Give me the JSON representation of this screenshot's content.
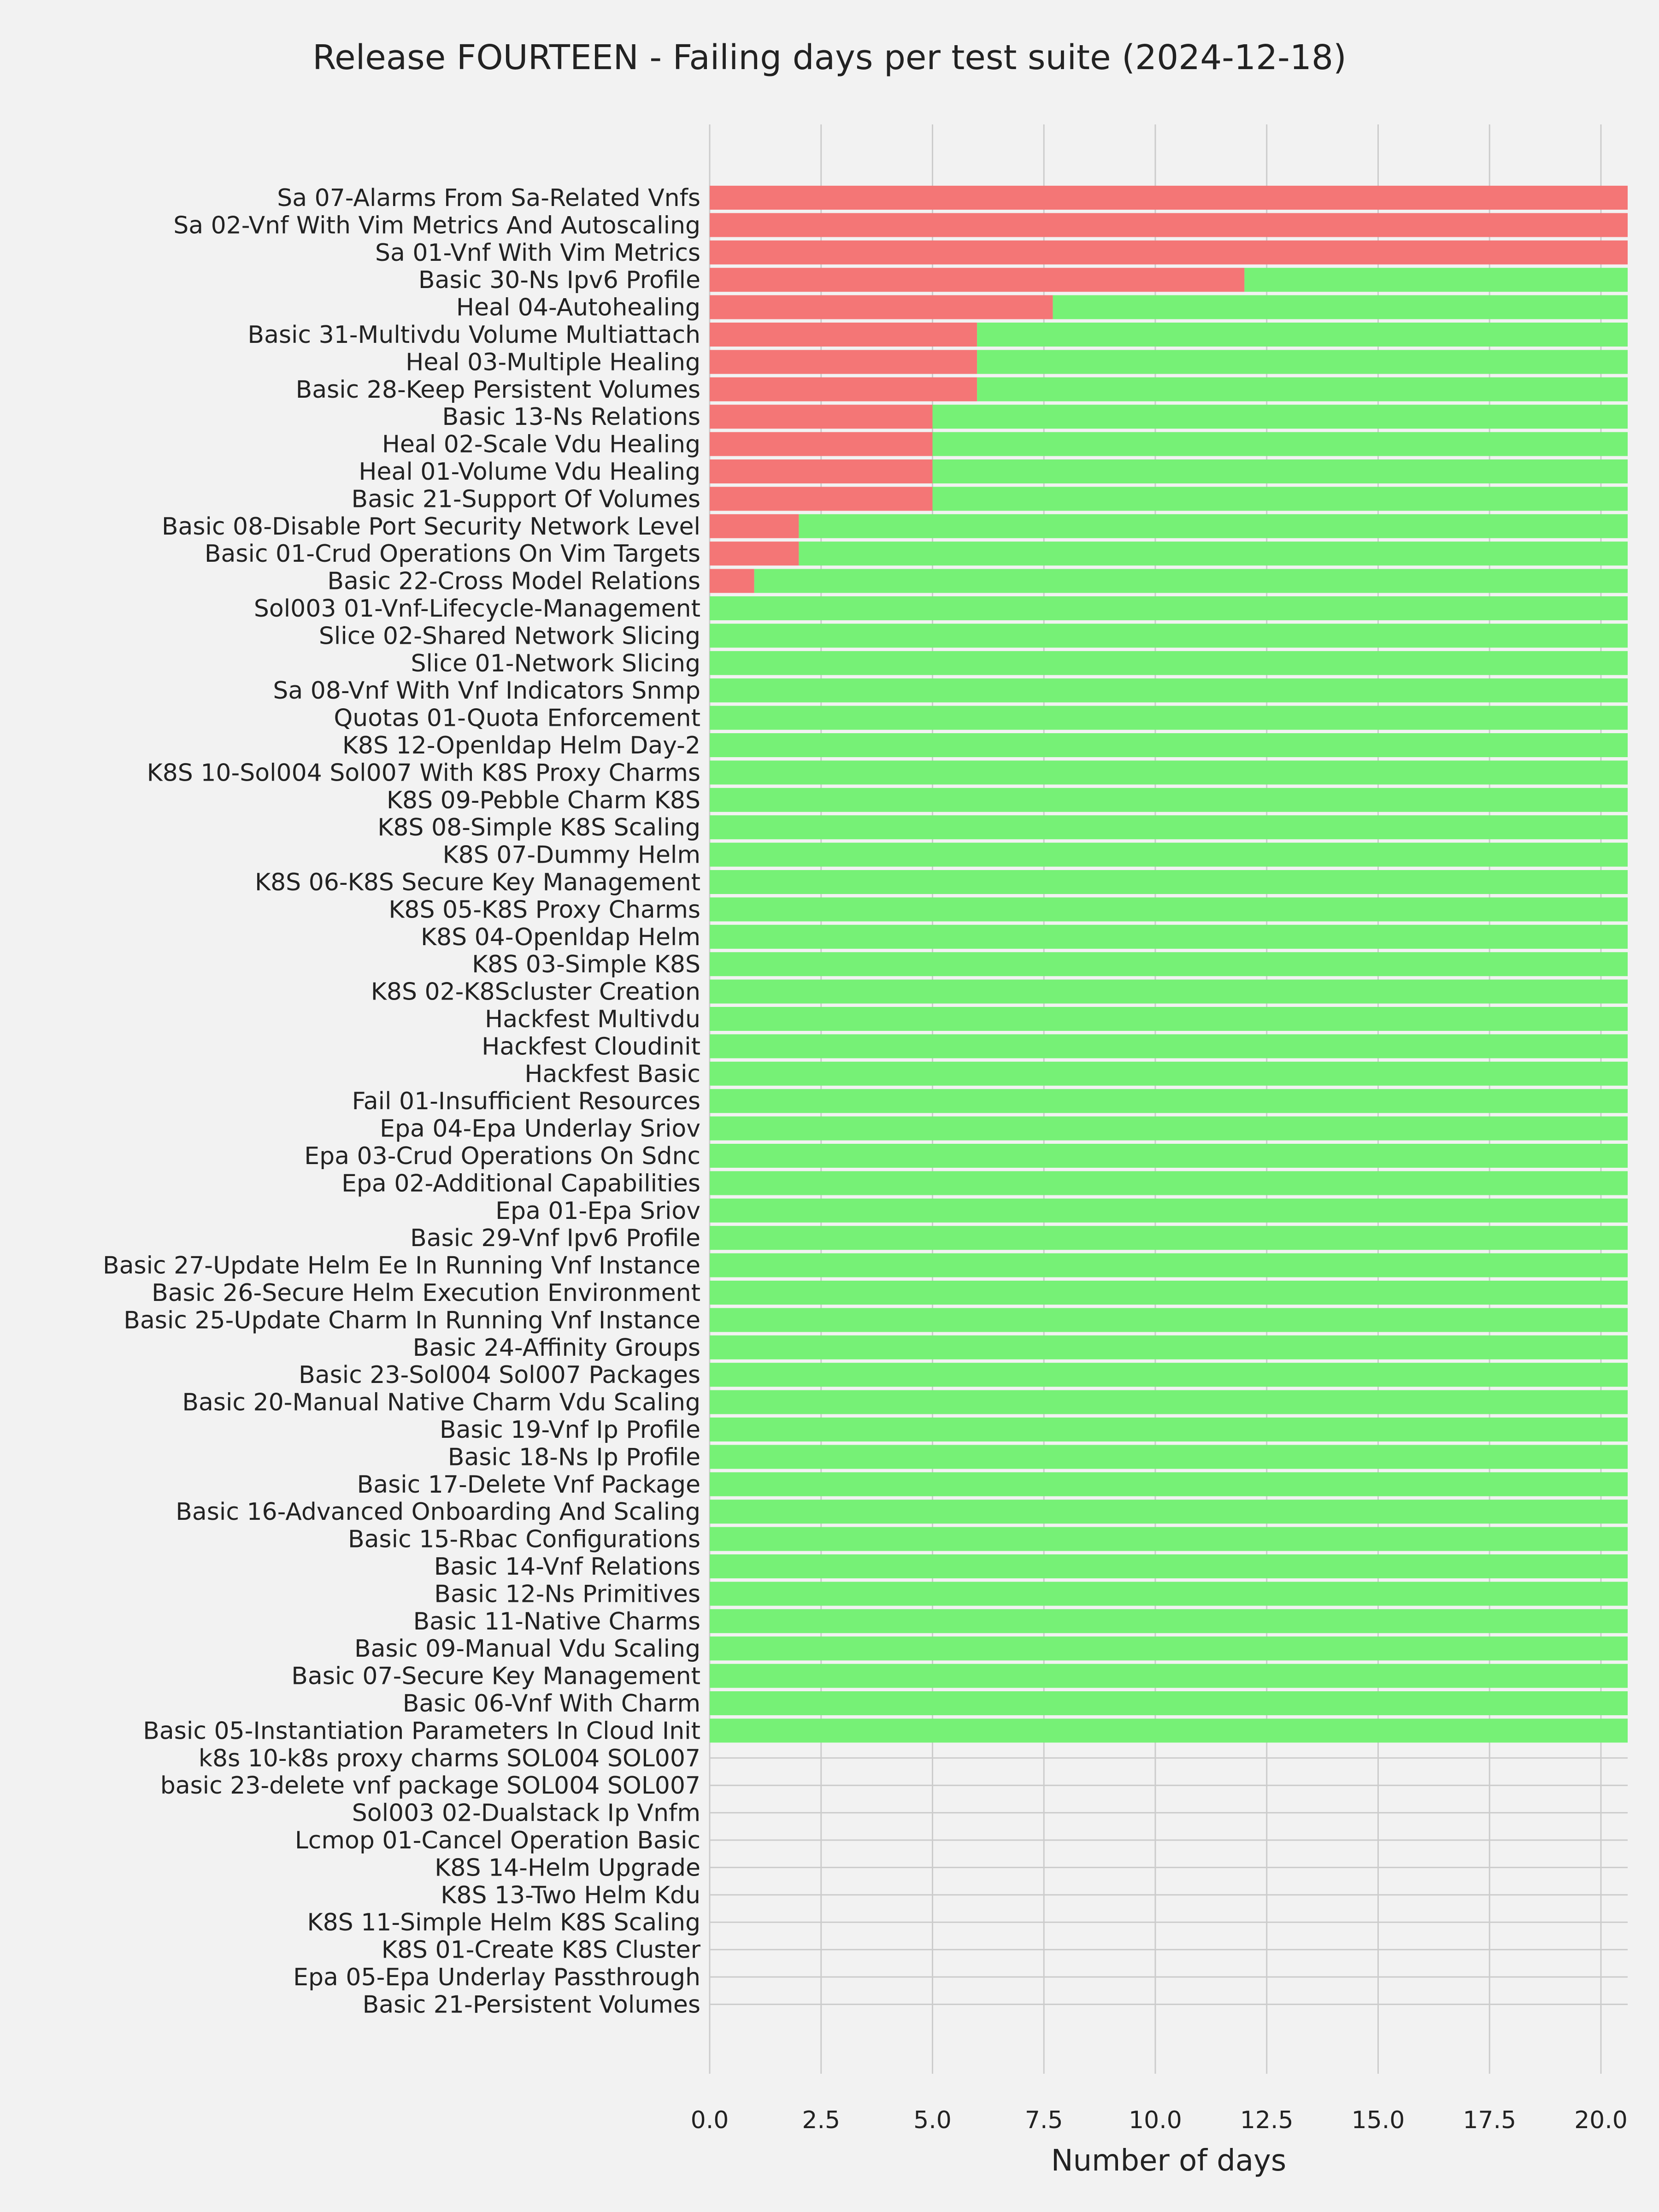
{
  "chart_data": {
    "type": "bar",
    "orientation": "horizontal",
    "stacked": true,
    "title": "Release FOURTEEN - Failing days per test suite (2024-12-18)",
    "xlabel": "Number of days",
    "ylabel": "",
    "xlim": [
      0,
      20.6
    ],
    "xticks": [
      "0.0",
      "2.5",
      "5.0",
      "7.5",
      "10.0",
      "12.5",
      "15.0",
      "17.5",
      "20.0"
    ],
    "grid": true,
    "colors": {
      "fail": "#f47676",
      "pass": "#76f176",
      "background": "#f2f2f2",
      "grid": "#cccccc"
    },
    "categories": [
      "Sa 07-Alarms From Sa-Related Vnfs",
      "Sa 02-Vnf With Vim Metrics And Autoscaling",
      "Sa 01-Vnf With Vim Metrics",
      "Basic 30-Ns Ipv6 Profile",
      "Heal 04-Autohealing",
      "Basic 31-Multivdu Volume Multiattach",
      "Heal 03-Multiple Healing",
      "Basic 28-Keep Persistent Volumes",
      "Basic 13-Ns Relations",
      "Heal 02-Scale Vdu Healing",
      "Heal 01-Volume Vdu Healing",
      "Basic 21-Support Of Volumes",
      "Basic 08-Disable Port Security Network Level",
      "Basic 01-Crud Operations On Vim Targets",
      "Basic 22-Cross Model Relations",
      "Sol003 01-Vnf-Lifecycle-Management",
      "Slice 02-Shared Network Slicing",
      "Slice 01-Network Slicing",
      "Sa 08-Vnf With Vnf Indicators Snmp",
      "Quotas 01-Quota Enforcement",
      "K8S 12-Openldap Helm Day-2",
      "K8S 10-Sol004 Sol007 With K8S Proxy Charms",
      "K8S 09-Pebble Charm K8S",
      "K8S 08-Simple K8S Scaling",
      "K8S 07-Dummy Helm",
      "K8S 06-K8S Secure Key Management",
      "K8S 05-K8S Proxy Charms",
      "K8S 04-Openldap Helm",
      "K8S 03-Simple K8S",
      "K8S 02-K8Scluster Creation",
      "Hackfest Multivdu",
      "Hackfest Cloudinit",
      "Hackfest Basic",
      "Fail 01-Insufficient Resources",
      "Epa 04-Epa Underlay Sriov",
      "Epa 03-Crud Operations On Sdnc",
      "Epa 02-Additional Capabilities",
      "Epa 01-Epa Sriov",
      "Basic 29-Vnf Ipv6 Profile",
      "Basic 27-Update Helm Ee In Running Vnf Instance",
      "Basic 26-Secure Helm Execution Environment",
      "Basic 25-Update Charm In Running Vnf Instance",
      "Basic 24-Affinity Groups",
      "Basic 23-Sol004 Sol007 Packages",
      "Basic 20-Manual Native Charm Vdu Scaling",
      "Basic 19-Vnf Ip Profile",
      "Basic 18-Ns Ip Profile",
      "Basic 17-Delete Vnf Package",
      "Basic 16-Advanced Onboarding And Scaling",
      "Basic 15-Rbac Configurations",
      "Basic 14-Vnf Relations",
      "Basic 12-Ns Primitives",
      "Basic 11-Native Charms",
      "Basic 09-Manual Vdu Scaling",
      "Basic 07-Secure Key Management",
      "Basic 06-Vnf With Charm",
      "Basic 05-Instantiation Parameters In Cloud Init",
      "k8s 10-k8s proxy charms SOL004 SOL007",
      "basic 23-delete vnf package SOL004 SOL007",
      "Sol003 02-Dualstack Ip Vnfm",
      "Lcmop 01-Cancel Operation Basic",
      "K8S 14-Helm Upgrade",
      "K8S 13-Two Helm Kdu",
      "K8S 11-Simple Helm K8S Scaling",
      "K8S 01-Create K8S Cluster",
      "Epa 05-Epa Underlay Passthrough",
      "Basic 21-Persistent Volumes"
    ],
    "series": [
      {
        "key": "fail",
        "values": [
          20.6,
          20.6,
          20.6,
          12,
          7.7,
          6,
          6,
          6,
          5,
          5,
          5,
          5,
          2,
          2,
          1,
          0,
          0,
          0,
          0,
          0,
          0,
          0,
          0,
          0,
          0,
          0,
          0,
          0,
          0,
          0,
          0,
          0,
          0,
          0,
          0,
          0,
          0,
          0,
          0,
          0,
          0,
          0,
          0,
          0,
          0,
          0,
          0,
          0,
          0,
          0,
          0,
          0,
          0,
          0,
          0,
          0,
          0,
          0,
          0,
          0,
          0,
          0,
          0,
          0,
          0,
          0,
          0
        ]
      },
      {
        "key": "pass",
        "values": [
          0,
          0,
          0,
          8.6,
          12.9,
          14.6,
          14.6,
          14.6,
          15.6,
          15.6,
          15.6,
          15.6,
          18.6,
          18.6,
          19.6,
          20.6,
          20.6,
          20.6,
          20.6,
          20.6,
          20.6,
          20.6,
          20.6,
          20.6,
          20.6,
          20.6,
          20.6,
          20.6,
          20.6,
          20.6,
          20.6,
          20.6,
          20.6,
          20.6,
          20.6,
          20.6,
          20.6,
          20.6,
          20.6,
          20.6,
          20.6,
          20.6,
          20.6,
          20.6,
          20.6,
          20.6,
          20.6,
          20.6,
          20.6,
          20.6,
          20.6,
          20.6,
          20.6,
          20.6,
          20.6,
          20.6,
          20.6,
          0,
          0,
          0,
          0,
          0,
          0,
          0,
          0,
          0,
          0
        ]
      }
    ]
  }
}
